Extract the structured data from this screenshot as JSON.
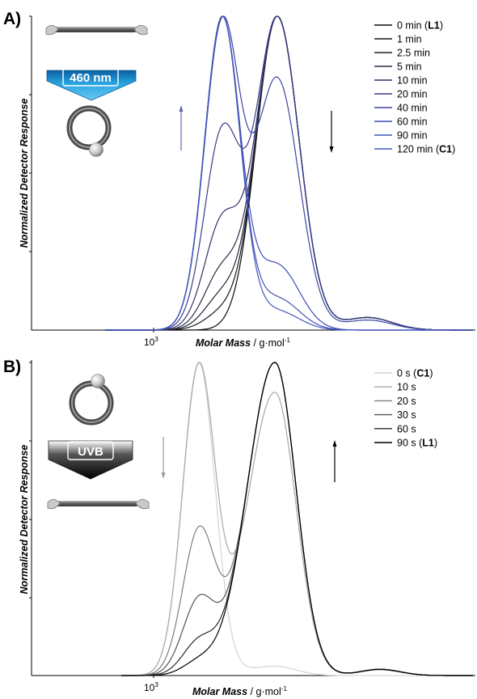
{
  "chart_data": [
    {
      "type": "line",
      "panel_label": "A)",
      "xlabel_prefix": "Molar Mass",
      "xlabel_unit": " / g·mol",
      "xlabel_sup": "-1",
      "ylabel": "Normalized Detector Response",
      "x_tick_base": "10",
      "x_tick_exp": "3",
      "x_scale": "log",
      "ylim": [
        0,
        1
      ],
      "grid": false,
      "legend_position": "top-right",
      "badge_text": "460 nm",
      "badge_color": "#1e8fcf",
      "arrow_up_color": "#5868b8",
      "arrow_down_color": "#000000",
      "series": [
        {
          "name": "0 min",
          "name_bold": "L1",
          "color": "#0a0a0a",
          "peak1": 0.0,
          "peak2": 1.0
        },
        {
          "name": "1 min",
          "color": "#161620",
          "peak1": 0.05,
          "peak2": 0.97
        },
        {
          "name": "2.5 min",
          "color": "#222232",
          "peak1": 0.1,
          "peak2": 0.95
        },
        {
          "name": "5 min",
          "color": "#2c2c48",
          "peak1": 0.17,
          "peak2": 0.92
        },
        {
          "name": "10 min",
          "color": "#34346a",
          "peak1": 0.3,
          "peak2": 0.88
        },
        {
          "name": "20 min",
          "color": "#3a3c88",
          "peak1": 0.5,
          "peak2": 0.8
        },
        {
          "name": "40 min",
          "color": "#3c44a0",
          "peak1": 0.78,
          "peak2": 0.64
        },
        {
          "name": "60 min",
          "color": "#3e4cb0",
          "peak1": 0.97,
          "peak2": 0.2
        },
        {
          "name": "90 min",
          "color": "#4052b8",
          "peak1": 1.0,
          "peak2": 0.1
        },
        {
          "name": "120 min",
          "name_bold": "C1",
          "color": "#4458c0",
          "peak1": 1.0,
          "peak2": 0.06
        }
      ]
    },
    {
      "type": "line",
      "panel_label": "B)",
      "xlabel_prefix": "Molar Mass",
      "xlabel_unit": " / g·mol",
      "xlabel_sup": "-1",
      "ylabel": "Normalized Detector Response",
      "x_tick_base": "10",
      "x_tick_exp": "3",
      "x_scale": "log",
      "ylim": [
        0,
        1
      ],
      "grid": false,
      "legend_position": "top-right",
      "badge_text": "UVB",
      "badge_color": "#000000",
      "arrow_up_color": "#000000",
      "arrow_down_color": "#9a9a9a",
      "series": [
        {
          "name": "0 s",
          "name_bold": "C1",
          "color": "#d4d4d4",
          "peak1": 1.0,
          "peak2": 0.03
        },
        {
          "name": "10 s",
          "color": "#a8a8a8",
          "peak1": 0.78,
          "peak2": 0.72
        },
        {
          "name": "20 s",
          "color": "#7e7e7e",
          "peak1": 0.4,
          "peak2": 0.88
        },
        {
          "name": "30 s",
          "color": "#555555",
          "peak1": 0.22,
          "peak2": 0.94
        },
        {
          "name": "60 s",
          "color": "#2a2a2a",
          "peak1": 0.1,
          "peak2": 0.98
        },
        {
          "name": "90 s",
          "name_bold": "L1",
          "color": "#000000",
          "peak1": 0.04,
          "peak2": 1.0
        }
      ]
    }
  ]
}
